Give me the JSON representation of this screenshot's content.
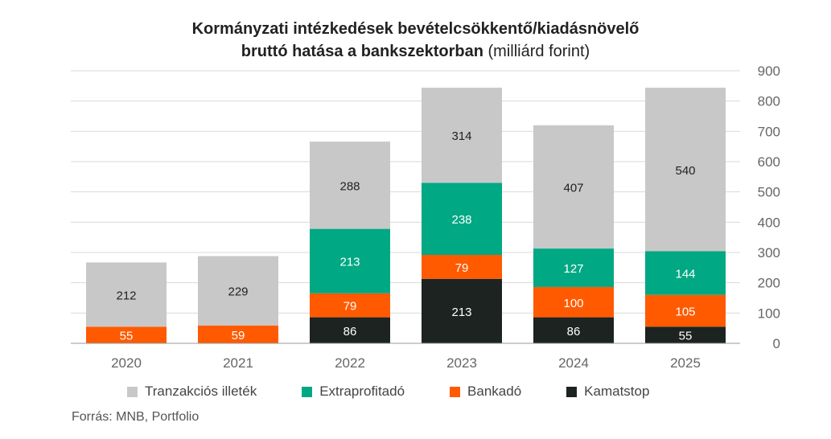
{
  "title": {
    "line1": "Kormányzati intézkedések bevételcsökkentő/kiadásnövelő",
    "line2_bold": "bruttó hatása a bankszektorban",
    "line2_normal": " (milliárd forint)"
  },
  "source": "Forrás: MNB, Portfolio",
  "colors": {
    "tranzakcios": "#c8c8c8",
    "extraprofit": "#00a884",
    "bankado": "#ff5a00",
    "kamatstop": "#1d2321",
    "grid": "#d9d9d9",
    "axis_text": "#666666"
  },
  "chart_data": {
    "type": "bar",
    "stacked": true,
    "categories": [
      "2020",
      "2021",
      "2022",
      "2023",
      "2024",
      "2025"
    ],
    "series": [
      {
        "name": "Kamatstop",
        "color_key": "kamatstop",
        "values": [
          0,
          0,
          86,
          213,
          86,
          55
        ],
        "labels": [
          "",
          "",
          "86",
          "213",
          "86",
          "55"
        ],
        "label_color": "#ffffff"
      },
      {
        "name": "Bankadó",
        "color_key": "bankado",
        "values": [
          55,
          59,
          79,
          79,
          100,
          105
        ],
        "labels": [
          "55",
          "59",
          "79",
          "79",
          "100",
          "105"
        ],
        "label_color": "#ffffff"
      },
      {
        "name": "Extraprofitadó",
        "color_key": "extraprofit",
        "values": [
          0,
          0,
          213,
          238,
          127,
          144
        ],
        "labels": [
          "",
          "",
          "213",
          "238",
          "127",
          "144"
        ],
        "label_color": "#ffffff"
      },
      {
        "name": "Tranzakciós illeték",
        "color_key": "tranzakcios",
        "values": [
          212,
          229,
          288,
          314,
          407,
          540
        ],
        "labels": [
          "212",
          "229",
          "288",
          "314",
          "407",
          "540"
        ],
        "label_color": "#222222"
      }
    ],
    "ylim": [
      0,
      900
    ],
    "yticks": [
      "0",
      "100",
      "200",
      "300",
      "400",
      "500",
      "600",
      "700",
      "800",
      "900"
    ],
    "y_axis_side": "right",
    "grid": true,
    "legend_position": "bottom",
    "legend": [
      "Tranzakciós illeték",
      "Extraprofitadó",
      "Bankadó",
      "Kamatstop"
    ]
  }
}
